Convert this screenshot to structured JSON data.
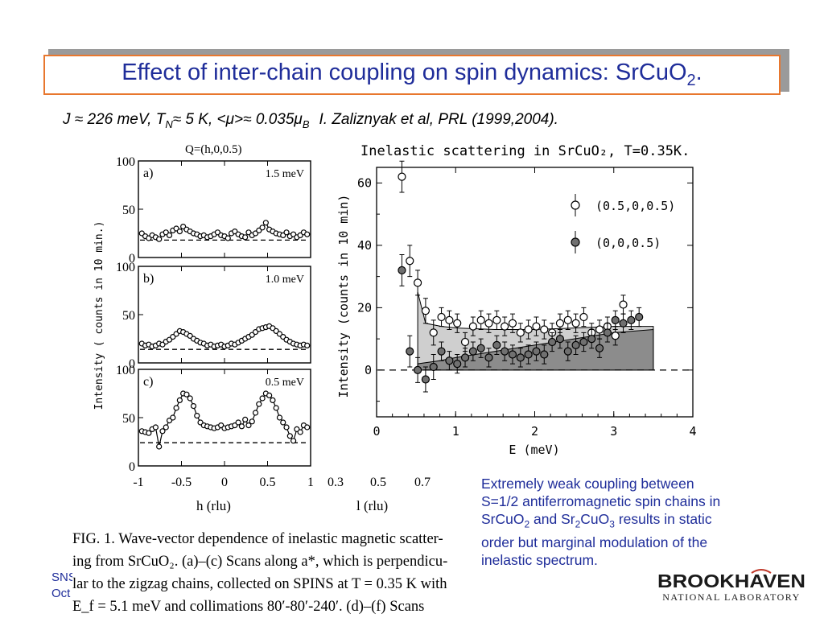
{
  "slide": {
    "title_main": "Effect of inter-chain coupling on spin dynamics: SrCuO",
    "title_sub": "2",
    "title_end": ".",
    "subtitle": {
      "j": "J",
      "approx": "≈",
      "j_value": "226 meV,",
      "t": "T",
      "t_sub": "N",
      "t_value": "5 K,",
      "mu": "<μ>",
      "mu_value": "0.035μ",
      "mu_sub": "B",
      "reference": "I. Zaliznyak  et al, PRL (1999,2004)."
    },
    "annotation": {
      "line1": "Extremely weak coupling between",
      "line2": "S=1/2 antiferromagnetic spin chains in",
      "part_a": "SrCuO",
      "sub_a": "2",
      "part_b": " and Sr",
      "sub_b": "2",
      "part_c": "CuO",
      "sub_c": "3",
      "part_d": " results in static",
      "line4": "order but marginal modulation of the",
      "line5": "inelastic spectrum."
    },
    "footer": {
      "line1": "SNS",
      "line2": "Oct"
    },
    "logo": {
      "name": "BROOKHAVEN",
      "sub": "NATIONAL LABORATORY"
    },
    "colors": {
      "title": "#1f2d9a",
      "title_border": "#e8772e",
      "annotation": "#1f2d9a",
      "light_fill": "#cfcfcf",
      "dark_fill": "#8c8c8c"
    }
  },
  "caption": {
    "line1": "FIG. 1.    Wave-vector dependence of inelastic magnetic scatter-",
    "line2": "ing from SrCuO₂.  (a)–(c) Scans along a*, which is perpendicu-",
    "line3": "lar to the zigzag chains, collected on SPINS at T = 0.35 K with",
    "line4": "E_f = 5.1 meV and collimations 80′-80′-240′.  (d)–(f) Scans"
  },
  "left_figure": {
    "top_label": "Q=(h,0,0.5)",
    "ylabel": "Intensity ( counts in 10 min.)",
    "xlabel": "h (rlu)",
    "xticks": [
      "-1",
      "-0.5",
      "0",
      "0.5",
      "1"
    ],
    "l_axis": {
      "ticks": [
        "0.3",
        "0.5",
        "0.7"
      ],
      "label": "l (rlu)"
    }
  },
  "chart_data": [
    {
      "type": "scatter",
      "title": "",
      "panels": [
        {
          "tag": "a)",
          "label": "1.5 meV",
          "ylim": [
            0,
            100
          ],
          "xlim": [
            -1,
            1
          ],
          "yticks": [
            "100",
            "50",
            "0"
          ],
          "baseline": 18,
          "x": [
            -0.96,
            -0.92,
            -0.88,
            -0.84,
            -0.8,
            -0.76,
            -0.72,
            -0.68,
            -0.64,
            -0.6,
            -0.56,
            -0.52,
            -0.48,
            -0.44,
            -0.4,
            -0.36,
            -0.32,
            -0.28,
            -0.24,
            -0.2,
            -0.16,
            -0.12,
            -0.08,
            -0.04,
            0.0,
            0.04,
            0.08,
            0.12,
            0.16,
            0.2,
            0.24,
            0.28,
            0.32,
            0.36,
            0.4,
            0.44,
            0.48,
            0.52,
            0.56,
            0.6,
            0.64,
            0.68,
            0.72,
            0.76,
            0.8,
            0.84,
            0.88,
            0.92,
            0.96
          ],
          "y": [
            25,
            22,
            20,
            23,
            21,
            19,
            24,
            26,
            23,
            28,
            30,
            27,
            32,
            29,
            27,
            25,
            24,
            22,
            23,
            21,
            22,
            24,
            26,
            23,
            22,
            20,
            25,
            27,
            24,
            22,
            21,
            26,
            23,
            25,
            28,
            31,
            36,
            29,
            27,
            25,
            24,
            23,
            26,
            22,
            24,
            21,
            23,
            26,
            24
          ]
        },
        {
          "tag": "b)",
          "label": "1.0 meV",
          "ylim": [
            0,
            100
          ],
          "xlim": [
            -1,
            1
          ],
          "yticks": [
            "100",
            "50",
            "0"
          ],
          "baseline": 14,
          "x": [
            -0.96,
            -0.92,
            -0.88,
            -0.84,
            -0.8,
            -0.76,
            -0.72,
            -0.68,
            -0.64,
            -0.6,
            -0.56,
            -0.52,
            -0.48,
            -0.44,
            -0.4,
            -0.36,
            -0.32,
            -0.28,
            -0.24,
            -0.2,
            -0.16,
            -0.12,
            -0.08,
            -0.04,
            0.0,
            0.04,
            0.08,
            0.12,
            0.16,
            0.2,
            0.24,
            0.28,
            0.32,
            0.36,
            0.4,
            0.44,
            0.48,
            0.52,
            0.56,
            0.6,
            0.64,
            0.68,
            0.72,
            0.76,
            0.8,
            0.84,
            0.88,
            0.92,
            0.96
          ],
          "y": [
            20,
            18,
            19,
            17,
            18,
            20,
            19,
            22,
            24,
            27,
            30,
            33,
            32,
            30,
            28,
            25,
            23,
            21,
            20,
            18,
            19,
            17,
            18,
            19,
            17,
            18,
            20,
            19,
            21,
            23,
            25,
            27,
            29,
            32,
            35,
            36,
            37,
            38,
            36,
            33,
            30,
            27,
            24,
            22,
            20,
            19,
            18,
            19,
            18
          ]
        },
        {
          "tag": "c)",
          "label": "0.5 meV",
          "ylim": [
            0,
            100
          ],
          "xlim": [
            -1,
            1
          ],
          "yticks": [
            "100",
            "50",
            "0"
          ],
          "baseline": 24,
          "x": [
            -0.96,
            -0.92,
            -0.88,
            -0.84,
            -0.8,
            -0.76,
            -0.72,
            -0.68,
            -0.64,
            -0.6,
            -0.56,
            -0.52,
            -0.48,
            -0.44,
            -0.4,
            -0.36,
            -0.32,
            -0.28,
            -0.24,
            -0.2,
            -0.16,
            -0.12,
            -0.08,
            -0.04,
            0.0,
            0.04,
            0.08,
            0.12,
            0.16,
            0.2,
            0.24,
            0.28,
            0.32,
            0.36,
            0.4,
            0.44,
            0.48,
            0.52,
            0.56,
            0.6,
            0.64,
            0.68,
            0.72,
            0.76,
            0.8,
            0.84,
            0.88,
            0.92,
            0.96
          ],
          "y": [
            36,
            35,
            34,
            38,
            40,
            20,
            36,
            40,
            47,
            50,
            60,
            68,
            75,
            74,
            70,
            62,
            52,
            45,
            42,
            41,
            40,
            39,
            40,
            42,
            39,
            40,
            41,
            42,
            45,
            41,
            48,
            42,
            46,
            55,
            64,
            70,
            75,
            73,
            68,
            60,
            50,
            45,
            40,
            31,
            26,
            38,
            35,
            42,
            40
          ]
        }
      ]
    },
    {
      "type": "scatter",
      "title": "Inelastic scattering in SrCuO₂, T=0.35K.",
      "xlabel": "E (meV)",
      "ylabel": "Intensity (counts in 10 min)",
      "xlim": [
        0,
        4
      ],
      "ylim": [
        -15,
        65
      ],
      "xticks": [
        "0",
        "1",
        "2",
        "3",
        "4"
      ],
      "yticks": [
        "60",
        "40",
        "20",
        "0"
      ],
      "series": [
        {
          "name": "(0.5,0,0.5)",
          "marker": "open",
          "x": [
            0.32,
            0.42,
            0.52,
            0.62,
            0.72,
            0.82,
            0.92,
            1.02,
            1.12,
            1.22,
            1.32,
            1.42,
            1.52,
            1.62,
            1.72,
            1.82,
            1.92,
            2.02,
            2.12,
            2.22,
            2.32,
            2.42,
            2.52,
            2.62,
            2.72,
            2.82,
            2.92,
            3.02,
            3.12
          ],
          "y": [
            62,
            35,
            28,
            19,
            12,
            17,
            16,
            15,
            9,
            14,
            16,
            15,
            16,
            14,
            15,
            12,
            13,
            14,
            13,
            12,
            15,
            16,
            15,
            17,
            12,
            13,
            14,
            11,
            21
          ],
          "err": [
            5,
            5,
            4,
            4,
            4,
            3,
            3,
            3,
            3,
            3,
            3,
            3,
            3,
            3,
            3,
            3,
            3,
            3,
            3,
            3,
            3,
            3,
            3,
            3,
            3,
            3,
            3,
            3,
            3
          ]
        },
        {
          "name": "(0,0,0.5)",
          "marker": "filled",
          "x": [
            0.32,
            0.42,
            0.52,
            0.62,
            0.72,
            0.82,
            0.92,
            1.02,
            1.12,
            1.22,
            1.32,
            1.42,
            1.52,
            1.62,
            1.72,
            1.82,
            1.92,
            2.02,
            2.12,
            2.22,
            2.32,
            2.42,
            2.52,
            2.62,
            2.72,
            2.82,
            2.92,
            3.02,
            3.12,
            3.22,
            3.32
          ],
          "y": [
            32,
            6,
            0,
            -3,
            1,
            6,
            3,
            2,
            4,
            6,
            7,
            4,
            8,
            6,
            5,
            4,
            5,
            6,
            5,
            9,
            10,
            6,
            8,
            9,
            10,
            7,
            12,
            16,
            15,
            16,
            17
          ],
          "err": [
            5,
            5,
            4,
            4,
            4,
            3,
            3,
            3,
            3,
            3,
            3,
            3,
            3,
            3,
            3,
            3,
            3,
            3,
            3,
            3,
            3,
            3,
            3,
            3,
            3,
            3,
            3,
            3,
            3,
            3,
            3
          ]
        }
      ],
      "shaded": [
        {
          "fill": "light",
          "x": [
            0.52,
            0.62,
            0.82,
            1.02,
            1.5,
            2.0,
            2.5,
            3.0,
            3.5
          ],
          "y": [
            25,
            15,
            14,
            13.5,
            13,
            13,
            13.5,
            14,
            14
          ]
        },
        {
          "fill": "dark",
          "x": [
            0.52,
            0.8,
            1.0,
            1.5,
            2.0,
            2.5,
            3.0,
            3.5
          ],
          "y": [
            2,
            3,
            4,
            6,
            8,
            10,
            12,
            13
          ]
        }
      ],
      "baseline": 0
    }
  ]
}
